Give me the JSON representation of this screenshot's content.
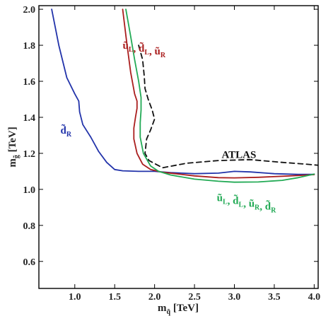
{
  "chart_data": {
    "type": "line",
    "title": "",
    "xlabel": {
      "base": "m",
      "sub": "q̃",
      "unit": " [TeV]"
    },
    "ylabel": {
      "base": "m",
      "sub": "g̃",
      "unit": " [TeV]"
    },
    "xlim": [
      0.55,
      4.05
    ],
    "ylim": [
      0.45,
      2.02
    ],
    "xticks": [
      "1.0",
      "1.5",
      "2.0",
      "2.5",
      "3.0",
      "3.5",
      "4.0"
    ],
    "yticks": [
      "0.6",
      "0.8",
      "1.0",
      "1.2",
      "1.4",
      "1.6",
      "1.8",
      "2.0"
    ],
    "xtick_values": [
      1.0,
      1.5,
      2.0,
      2.5,
      3.0,
      3.5,
      4.0
    ],
    "ytick_values": [
      0.6,
      0.8,
      1.0,
      1.2,
      1.4,
      1.6,
      1.8,
      2.0
    ],
    "series": [
      {
        "label_parts": [
          [
            "d̃",
            "R"
          ]
        ],
        "label_at": [
          0.82,
          1.31
        ],
        "color": "#2233aa",
        "dash": false,
        "points": [
          [
            0.71,
            2.0
          ],
          [
            0.8,
            1.8
          ],
          [
            0.9,
            1.62
          ],
          [
            1.0,
            1.53
          ],
          [
            1.05,
            1.49
          ],
          [
            1.06,
            1.43
          ],
          [
            1.1,
            1.36
          ],
          [
            1.2,
            1.29
          ],
          [
            1.3,
            1.21
          ],
          [
            1.4,
            1.15
          ],
          [
            1.5,
            1.11
          ],
          [
            1.6,
            1.103
          ],
          [
            1.8,
            1.1
          ],
          [
            2.0,
            1.1
          ],
          [
            2.2,
            1.093
          ],
          [
            2.5,
            1.087
          ],
          [
            2.8,
            1.09
          ],
          [
            3.0,
            1.1
          ],
          [
            3.2,
            1.097
          ],
          [
            3.5,
            1.087
          ],
          [
            3.8,
            1.083
          ],
          [
            4.0,
            1.083
          ]
        ]
      },
      {
        "label_parts": [
          [
            "ũ",
            "L"
          ],
          [
            "d̃",
            "L"
          ],
          [
            "ũ",
            "R"
          ]
        ],
        "label_at": [
          1.6,
          1.78
        ],
        "color": "#aa1e1e",
        "dash": false,
        "points": [
          [
            1.6,
            2.0
          ],
          [
            1.65,
            1.82
          ],
          [
            1.7,
            1.65
          ],
          [
            1.75,
            1.53
          ],
          [
            1.78,
            1.49
          ],
          [
            1.78,
            1.45
          ],
          [
            1.76,
            1.4
          ],
          [
            1.74,
            1.34
          ],
          [
            1.74,
            1.28
          ],
          [
            1.78,
            1.2
          ],
          [
            1.85,
            1.14
          ],
          [
            1.95,
            1.11
          ],
          [
            2.1,
            1.095
          ],
          [
            2.3,
            1.085
          ],
          [
            2.5,
            1.075
          ],
          [
            2.8,
            1.065
          ],
          [
            3.0,
            1.064
          ],
          [
            3.3,
            1.067
          ],
          [
            3.6,
            1.073
          ],
          [
            3.85,
            1.078
          ],
          [
            4.0,
            1.082
          ]
        ]
      },
      {
        "label_parts": [
          [
            "ũ",
            "L"
          ],
          [
            "d̃",
            "L"
          ],
          [
            "ũ",
            "R"
          ],
          [
            "d̃",
            "R"
          ]
        ],
        "label_at": [
          2.78,
          0.935
        ],
        "color": "#22aa55",
        "dash": false,
        "points": [
          [
            1.64,
            2.0
          ],
          [
            1.7,
            1.85
          ],
          [
            1.75,
            1.72
          ],
          [
            1.8,
            1.6
          ],
          [
            1.83,
            1.51
          ],
          [
            1.83,
            1.44
          ],
          [
            1.82,
            1.37
          ],
          [
            1.82,
            1.29
          ],
          [
            1.86,
            1.2
          ],
          [
            1.95,
            1.13
          ],
          [
            2.05,
            1.1
          ],
          [
            2.2,
            1.08
          ],
          [
            2.5,
            1.057
          ],
          [
            2.8,
            1.045
          ],
          [
            3.0,
            1.04
          ],
          [
            3.3,
            1.041
          ],
          [
            3.6,
            1.05
          ],
          [
            3.8,
            1.065
          ],
          [
            4.0,
            1.085
          ]
        ]
      },
      {
        "label_parts": [
          [
            "ATLAS",
            ""
          ]
        ],
        "label_at": [
          2.84,
          1.175
        ],
        "color": "#111111",
        "dash": true,
        "points": [
          [
            1.8,
            1.8
          ],
          [
            1.85,
            1.72
          ],
          [
            1.87,
            1.63
          ],
          [
            1.88,
            1.56
          ],
          [
            1.92,
            1.5
          ],
          [
            1.97,
            1.44
          ],
          [
            2.0,
            1.39
          ],
          [
            1.95,
            1.33
          ],
          [
            1.9,
            1.28
          ],
          [
            1.88,
            1.2
          ],
          [
            1.93,
            1.16
          ],
          [
            2.1,
            1.12
          ],
          [
            2.4,
            1.145
          ],
          [
            2.8,
            1.16
          ],
          [
            3.2,
            1.165
          ],
          [
            3.6,
            1.15
          ],
          [
            3.9,
            1.14
          ],
          [
            4.15,
            1.13
          ]
        ]
      }
    ]
  }
}
